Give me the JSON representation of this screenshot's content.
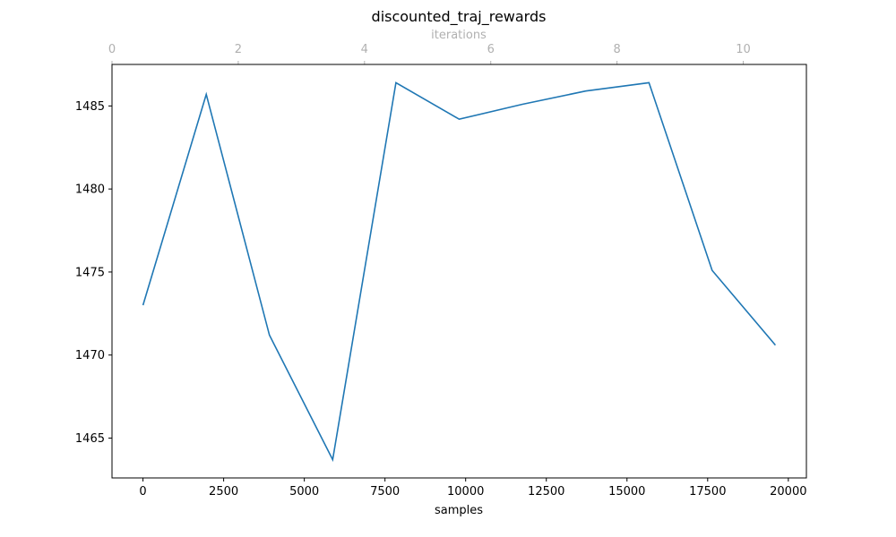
{
  "chart_data": {
    "type": "line",
    "title": "discounted_traj_rewards",
    "xlabel": "samples",
    "ylabel": "",
    "top_xlabel": "iterations",
    "xlim": [
      -960,
      20560
    ],
    "ylim": [
      1462.6,
      1487.5
    ],
    "top_xlim": [
      0,
      11
    ],
    "x_ticks": [
      0,
      2500,
      5000,
      7500,
      10000,
      12500,
      15000,
      17500,
      20000
    ],
    "y_ticks": [
      1465,
      1470,
      1475,
      1480,
      1485
    ],
    "top_ticks": [
      0,
      2,
      4,
      6,
      8,
      10
    ],
    "grid": false,
    "series_color": "#1f77b4",
    "top_axis_color": "#b0b0b0",
    "series": [
      {
        "x": [
          0,
          1960,
          3920,
          5880,
          7840,
          9800,
          11760,
          13720,
          15680,
          17640,
          19600
        ],
        "y": [
          1473.0,
          1485.7,
          1471.2,
          1463.7,
          1486.4,
          1484.2,
          1485.1,
          1485.9,
          1486.4,
          1475.1,
          1470.6
        ]
      }
    ]
  }
}
